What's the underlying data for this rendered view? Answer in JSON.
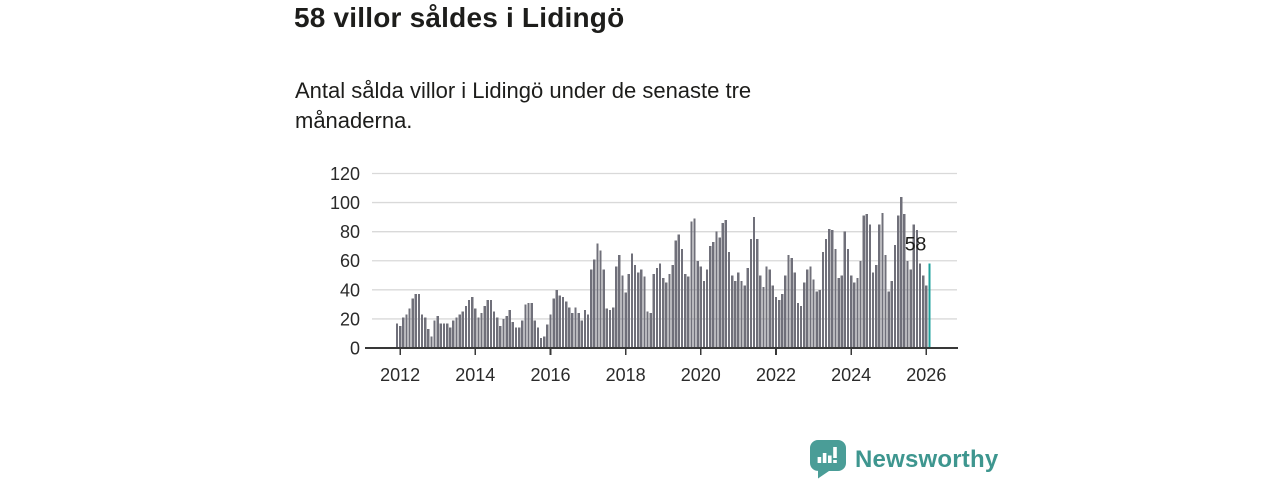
{
  "title": "58 villor såldes i Lidingö",
  "subtitle": "Antal sålda villor i Lidingö under de senaste tre månaderna.",
  "branding": {
    "name": "Newsworthy",
    "icon": "bar-chart-speech-bubble-icon"
  },
  "colors": {
    "bar": "#70707a",
    "highlight": "#1fa29c",
    "grid": "#d9d9d9",
    "axis": "#383838",
    "text": "#2a2a2a",
    "annotation": "#1d1d1b",
    "brand": "#3e968f"
  },
  "chart_data": {
    "type": "bar",
    "title": "58 villor såldes i Lidingö",
    "xlabel": "",
    "ylabel": "",
    "unit": "sålda villor per 3 månader",
    "start_month": "2011-12",
    "end_month": "2026-02",
    "frequency": "monthly",
    "ylim": [
      0,
      120
    ],
    "y_ticks": [
      0,
      20,
      40,
      60,
      80,
      100,
      120
    ],
    "x_tick_labels": [
      "2012",
      "2014",
      "2016",
      "2018",
      "2020",
      "2022",
      "2024",
      "2026"
    ],
    "grid": "horizontal",
    "legend": "none",
    "highlight_last": true,
    "last_value_label": "58",
    "values": [
      17,
      15,
      21,
      23,
      27,
      34,
      37,
      37,
      23,
      21,
      13,
      8,
      19,
      22,
      17,
      17,
      17,
      14,
      19,
      21,
      23,
      25,
      29,
      33,
      35,
      27,
      21,
      24,
      29,
      33,
      33,
      25,
      21,
      15,
      20,
      22,
      26,
      18,
      14,
      14,
      19,
      30,
      31,
      31,
      19,
      14,
      7,
      8,
      16,
      23,
      34,
      40,
      36,
      35,
      32,
      28,
      24,
      28,
      24,
      19,
      26,
      23,
      54,
      61,
      72,
      67,
      54,
      27,
      26,
      28,
      56,
      64,
      50,
      38,
      51,
      65,
      57,
      52,
      54,
      49,
      25,
      24,
      51,
      55,
      58,
      48,
      45,
      51,
      57,
      74,
      78,
      68,
      51,
      49,
      87,
      89,
      60,
      56,
      46,
      54,
      70,
      73,
      80,
      76,
      86,
      88,
      66,
      50,
      46,
      52,
      46,
      43,
      55,
      75,
      90,
      75,
      50,
      42,
      56,
      54,
      43,
      35,
      33,
      37,
      50,
      64,
      62,
      52,
      31,
      29,
      45,
      54,
      56,
      47,
      39,
      40,
      66,
      75,
      82,
      81,
      68,
      48,
      50,
      80,
      68,
      50,
      45,
      48,
      60,
      91,
      92,
      85,
      52,
      57,
      85,
      93,
      64,
      39,
      46,
      71,
      91,
      104,
      92,
      60,
      54,
      85,
      81,
      58,
      50,
      43,
      58
    ]
  }
}
